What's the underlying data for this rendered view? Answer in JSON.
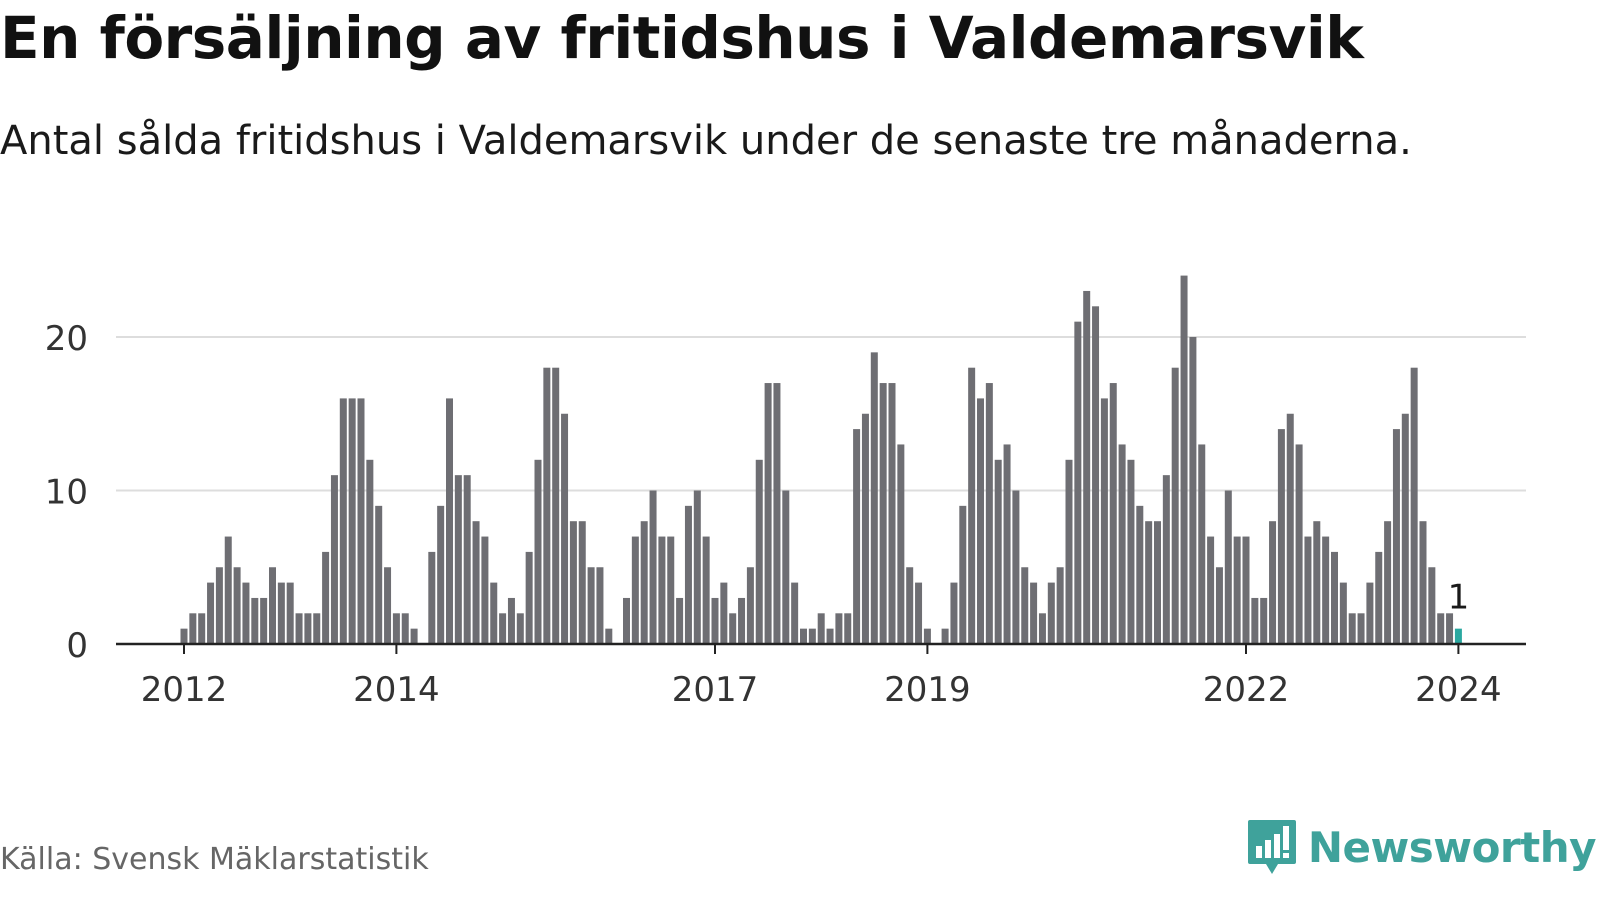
{
  "header": {
    "title": "En försäljning av fritidshus i Valdemarsvik",
    "subtitle": "Antal sålda fritidshus i Valdemarsvik under de senaste tre månaderna."
  },
  "footer": {
    "source": "Källa: Svensk Mäklarstatistik",
    "brand": "Newsworthy",
    "brand_icon": "newsworthy-logo-icon"
  },
  "colors": {
    "bar": "#6e6e73",
    "highlight": "#2aa8a0",
    "grid": "#dddddd",
    "axis": "#222222",
    "brand": "#3fa29b"
  },
  "chart_data": {
    "type": "bar",
    "title": "En försäljning av fritidshus i Valdemarsvik",
    "subtitle": "Antal sålda fritidshus i Valdemarsvik under de senaste tre månaderna.",
    "xlabel": "",
    "ylabel": "",
    "ylim": [
      0,
      24
    ],
    "yticks": [
      0,
      10,
      20
    ],
    "grid": true,
    "x_tick_labels": [
      {
        "label": "2012",
        "index": 0
      },
      {
        "label": "2014",
        "index": 24
      },
      {
        "label": "2017",
        "index": 60
      },
      {
        "label": "2019",
        "index": 84
      },
      {
        "label": "2022",
        "index": 120
      },
      {
        "label": "2024",
        "index": 144
      }
    ],
    "first_period": "2012-01",
    "values": [
      1,
      2,
      2,
      4,
      5,
      7,
      5,
      4,
      3,
      3,
      5,
      4,
      4,
      2,
      2,
      2,
      6,
      11,
      16,
      16,
      16,
      12,
      9,
      5,
      2,
      2,
      1,
      0,
      6,
      9,
      16,
      11,
      11,
      8,
      7,
      4,
      2,
      3,
      2,
      6,
      12,
      18,
      18,
      15,
      8,
      8,
      5,
      5,
      1,
      0,
      3,
      7,
      8,
      10,
      7,
      7,
      3,
      9,
      10,
      7,
      3,
      4,
      2,
      3,
      5,
      12,
      17,
      17,
      10,
      4,
      1,
      1,
      2,
      1,
      2,
      2,
      14,
      15,
      19,
      17,
      17,
      13,
      5,
      4,
      1,
      0,
      1,
      4,
      9,
      18,
      16,
      17,
      12,
      13,
      10,
      5,
      4,
      2,
      4,
      5,
      12,
      21,
      23,
      22,
      16,
      17,
      13,
      12,
      9,
      8,
      8,
      11,
      18,
      24,
      20,
      13,
      7,
      5,
      10,
      7,
      7,
      3,
      3,
      8,
      14,
      15,
      13,
      7,
      8,
      7,
      6,
      4,
      2,
      2,
      4,
      6,
      8,
      14,
      15,
      18,
      8,
      5,
      2,
      2,
      1
    ],
    "highlight_index": 144,
    "highlight_label": "1"
  }
}
